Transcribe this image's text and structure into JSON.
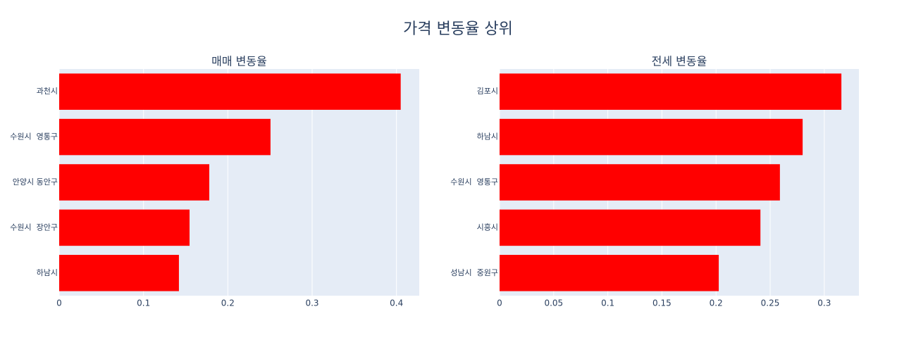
{
  "title": "가격 변동율 상위",
  "chart_data": [
    {
      "type": "bar",
      "orientation": "horizontal",
      "title": "매매 변동율",
      "categories": [
        "과천시",
        "수원시  영통구",
        "안양시 동안구",
        "수원시  장안구",
        "하남시"
      ],
      "values": [
        0.405,
        0.2506,
        0.178,
        0.1546,
        0.142
      ],
      "color": "#ff0000",
      "xlim": [
        0,
        0.427
      ],
      "xticks": [
        0,
        0.1,
        0.2,
        0.3,
        0.4
      ],
      "grid": true
    },
    {
      "type": "bar",
      "orientation": "horizontal",
      "title": "전세 변동율",
      "categories": [
        "김포시",
        "하남시",
        "수원시  영통구",
        "시흥시",
        "성남시  중원구"
      ],
      "values": [
        0.3158,
        0.28,
        0.259,
        0.241,
        0.2025
      ],
      "color": "#ff0000",
      "xlim": [
        0,
        0.332
      ],
      "xticks": [
        0,
        0.05,
        0.1,
        0.15,
        0.2,
        0.25,
        0.3
      ],
      "grid": true
    }
  ]
}
